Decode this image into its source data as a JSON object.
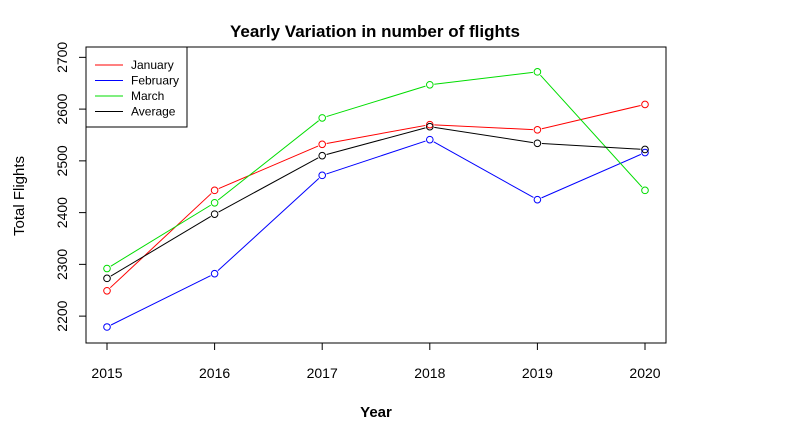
{
  "chart_data": {
    "type": "line",
    "title": "Yearly Variation in number of flights",
    "xlabel": "Year",
    "ylabel": "Total Flights",
    "x": [
      2015,
      2016,
      2017,
      2018,
      2019,
      2020
    ],
    "xlim": [
      2015,
      2020
    ],
    "ylim": [
      2150,
      2720
    ],
    "yticks": [
      2200,
      2300,
      2400,
      2500,
      2600,
      2700
    ],
    "grid": false,
    "legend_position": "top-left",
    "series": [
      {
        "name": "January",
        "color": "#FF0000",
        "values": [
          2249,
          2443,
          2532,
          2570,
          2560,
          2609
        ]
      },
      {
        "name": "February",
        "color": "#0000FF",
        "values": [
          2179,
          2282,
          2472,
          2541,
          2425,
          2516
        ]
      },
      {
        "name": "March",
        "color": "#00DD00",
        "values": [
          2292,
          2419,
          2583,
          2647,
          2672,
          2443
        ]
      },
      {
        "name": "Average",
        "color": "#000000",
        "values": [
          2273,
          2397,
          2510,
          2566,
          2534,
          2522
        ]
      }
    ]
  }
}
